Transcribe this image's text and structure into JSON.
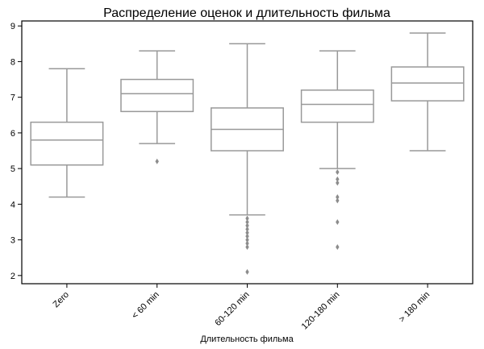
{
  "chart_data": {
    "type": "box",
    "title": "Распределение оценок и длительность фильма",
    "xlabel": "Длительность фильма",
    "ylabel": "",
    "ylim": [
      1.77,
      9.14
    ],
    "yticks": [
      2,
      3,
      4,
      5,
      6,
      7,
      8,
      9
    ],
    "grid": false,
    "box_color": "#999999",
    "categories": [
      "Zero",
      "< 60 min",
      "60-120 min",
      "120-180 min",
      "> 180 min"
    ],
    "boxes": [
      {
        "whisker_low": 4.2,
        "q1": 5.1,
        "median": 5.8,
        "q3": 6.3,
        "whisker_high": 7.8,
        "outliers": []
      },
      {
        "whisker_low": 5.7,
        "q1": 6.6,
        "median": 7.1,
        "q3": 7.5,
        "whisker_high": 8.3,
        "outliers": [
          5.2
        ]
      },
      {
        "whisker_low": 3.7,
        "q1": 5.5,
        "median": 6.1,
        "q3": 6.7,
        "whisker_high": 8.5,
        "outliers": [
          3.6,
          3.5,
          3.4,
          3.3,
          3.2,
          3.1,
          3.0,
          2.9,
          2.8,
          2.1
        ]
      },
      {
        "whisker_low": 5.0,
        "q1": 6.3,
        "median": 6.8,
        "q3": 7.2,
        "whisker_high": 8.3,
        "outliers": [
          4.9,
          4.7,
          4.6,
          4.2,
          4.1,
          3.5,
          2.8
        ]
      },
      {
        "whisker_low": 5.5,
        "q1": 6.9,
        "median": 7.4,
        "q3": 7.85,
        "whisker_high": 8.8,
        "outliers": []
      }
    ]
  }
}
